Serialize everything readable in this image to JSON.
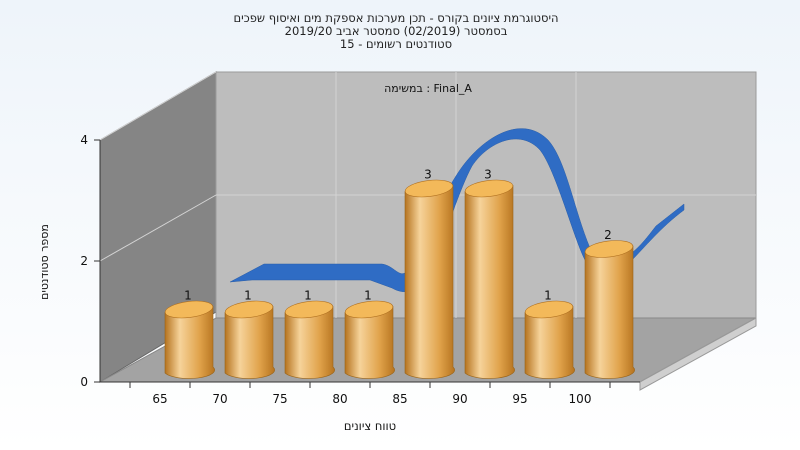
{
  "chart_data": {
    "type": "bar",
    "title_lines": [
      "היסטוגרמת ציונים בקורס - תכן מערכות אספקת מים ואיסוף שפכים",
      "בסמסטר  (02/2019)  סמסטר אביב 2019/20",
      "סטודנטים רשומים - 15"
    ],
    "annotation": "במשימה : Final_A",
    "xlabel": "טווח ציונים",
    "ylabel": "מספר סטודנטים",
    "categories": [
      "65",
      "70",
      "75",
      "80",
      "85",
      "90",
      "95",
      "100"
    ],
    "values": [
      1,
      1,
      1,
      1,
      3,
      3,
      1,
      2
    ],
    "y_ticks": [
      "0",
      "2",
      "4"
    ],
    "ylim": [
      0,
      4
    ],
    "grid": true,
    "legend": "none",
    "colors": {
      "bar_light": "#f6d39a",
      "bar_mid": "#e0a24a",
      "bar_dark": "#b5731f",
      "bar_top": "#f3b95a",
      "ribbon": "#2f6cc4",
      "back_wall": "#bdbdbd",
      "side_wall": "#858585",
      "floor": "#a3a3a3",
      "background_top": "#eef4fa",
      "background_bottom": "#ffffff"
    }
  }
}
